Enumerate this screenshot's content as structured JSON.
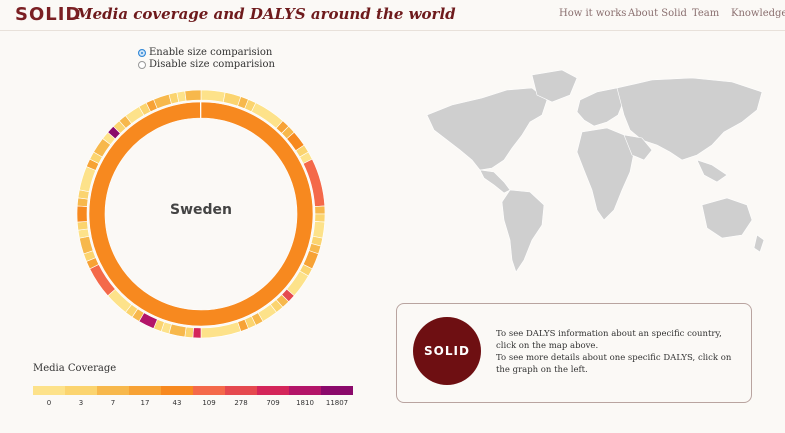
{
  "header": {
    "logo": "SOLID",
    "title": "Media coverage and DALYS around the world",
    "nav": [
      "How it works",
      "About Solid",
      "Team",
      "Knowledge"
    ]
  },
  "options": {
    "enable_label": "Enable size comparision",
    "disable_label": "Disable size comparision",
    "selected": "enable"
  },
  "donut": {
    "center_label": "Sweden",
    "inner_color": "#f7891f",
    "outer_colors": [
      "#fde28a",
      "#fbd46f",
      "#f7b84c",
      "#f7a235",
      "#f7891f",
      "#f4694a",
      "#e5494f",
      "#d4265a",
      "#b31569",
      "#8b0a6b"
    ]
  },
  "legend": {
    "title": "Media Coverage",
    "colors": [
      "#fde28a",
      "#fbd46f",
      "#f7b84c",
      "#f7a235",
      "#f7891f",
      "#f4694a",
      "#e5494f",
      "#d4265a",
      "#b31569",
      "#8b0a6b"
    ],
    "labels": [
      "0",
      "3",
      "7",
      "17",
      "43",
      "109",
      "278",
      "709",
      "1810",
      "11807"
    ]
  },
  "info": {
    "logo": "SOLID",
    "line1": "To see DALYS information about an specific country, click on the map above.",
    "line2": "To see more details about one specific DALYS, click on the graph on the left."
  }
}
